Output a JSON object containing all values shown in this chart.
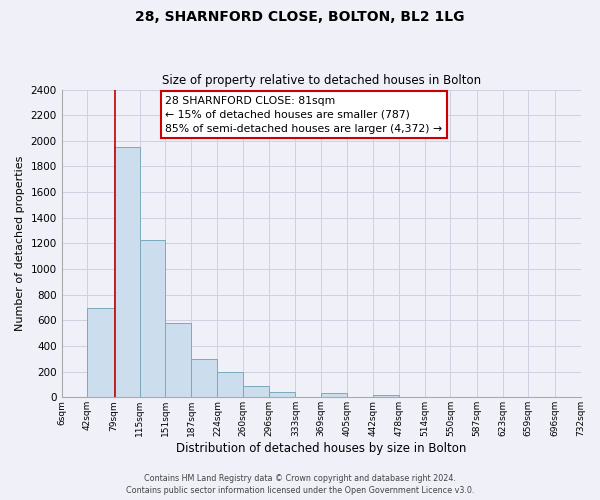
{
  "title": "28, SHARNFORD CLOSE, BOLTON, BL2 1LG",
  "subtitle": "Size of property relative to detached houses in Bolton",
  "xlabel": "Distribution of detached houses by size in Bolton",
  "ylabel": "Number of detached properties",
  "bin_edges": [
    6,
    42,
    79,
    115,
    151,
    187,
    224,
    260,
    296,
    333,
    369,
    405,
    442,
    478,
    514,
    550,
    587,
    623,
    659,
    696,
    732
  ],
  "bin_counts": [
    0,
    700,
    1950,
    1230,
    580,
    300,
    200,
    85,
    45,
    0,
    35,
    0,
    15,
    0,
    0,
    0,
    0,
    0,
    0,
    0
  ],
  "bar_color": "#ccdded",
  "bar_edge_color": "#7aaabb",
  "property_line_x": 81,
  "property_line_color": "#cc0000",
  "ylim": [
    0,
    2400
  ],
  "yticks": [
    0,
    200,
    400,
    600,
    800,
    1000,
    1200,
    1400,
    1600,
    1800,
    2000,
    2200,
    2400
  ],
  "annotation_line1": "28 SHARNFORD CLOSE: 81sqm",
  "annotation_line2": "← 15% of detached houses are smaller (787)",
  "annotation_line3": "85% of semi-detached houses are larger (4,372) →",
  "annotation_box_facecolor": "#ffffff",
  "annotation_box_edgecolor": "#cc0000",
  "footer1": "Contains HM Land Registry data © Crown copyright and database right 2024.",
  "footer2": "Contains public sector information licensed under the Open Government Licence v3.0.",
  "background_color": "#f0f0f8",
  "grid_color": "#d0d0e0"
}
